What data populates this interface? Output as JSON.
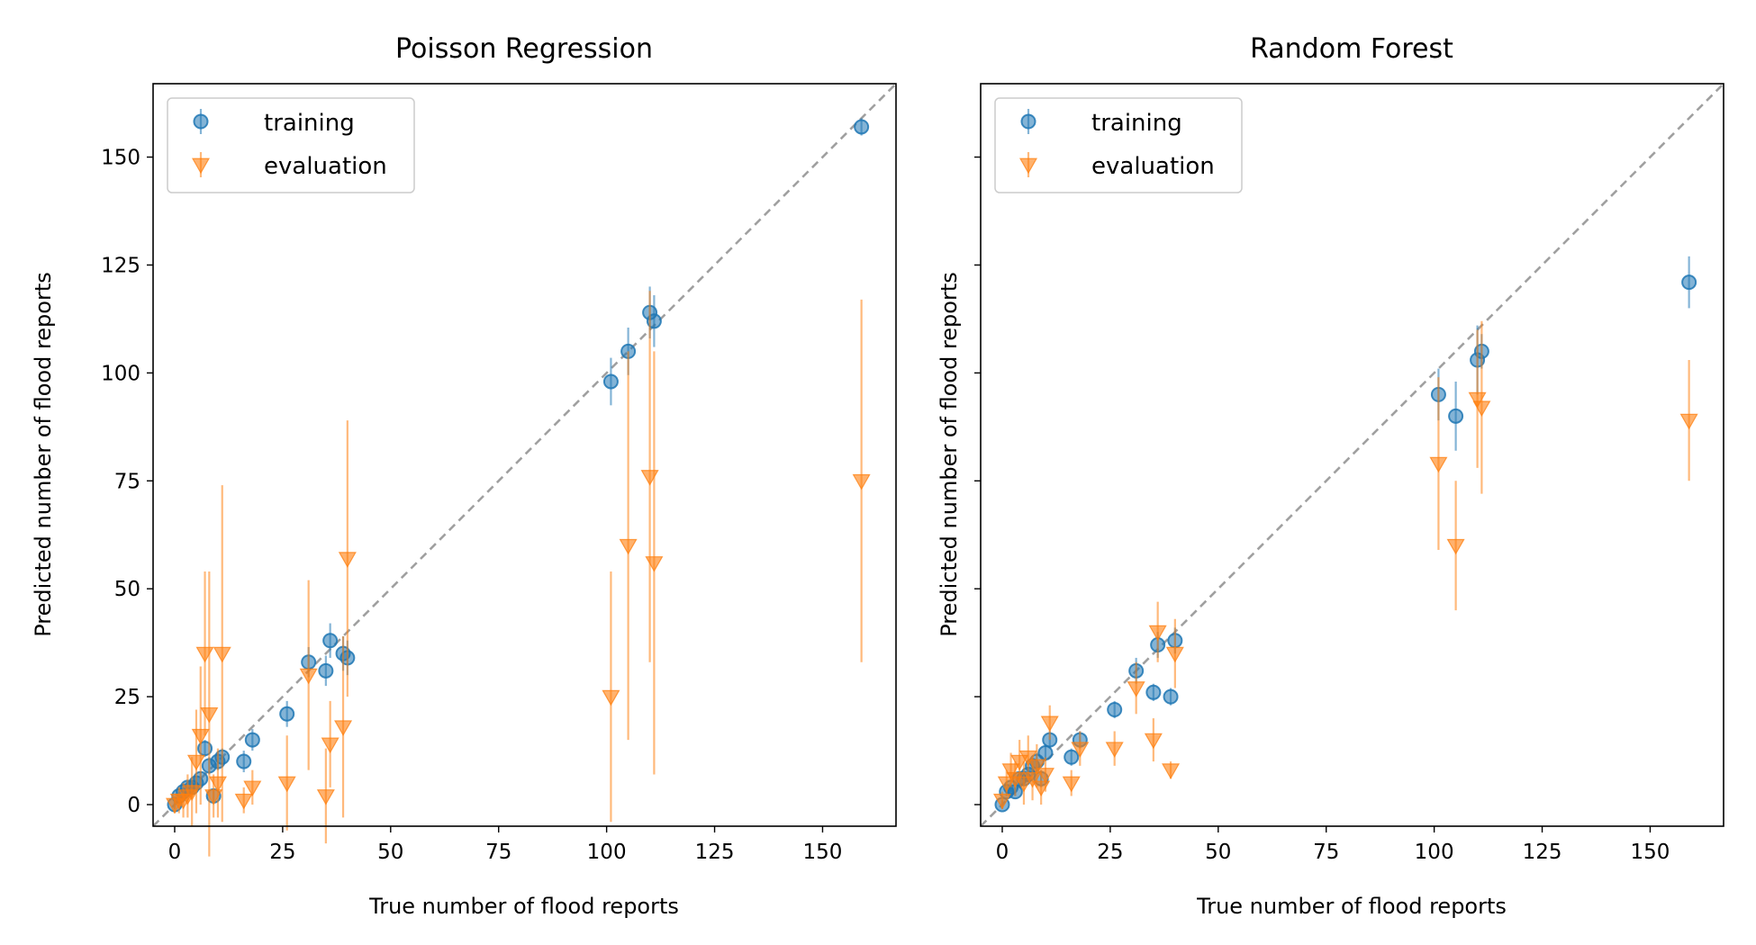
{
  "chart_data": [
    {
      "type": "scatter",
      "title": "Poisson Regression",
      "xlabel": "True number of flood reports",
      "ylabel": "Predicted number of flood reports",
      "xlim": [
        -5,
        167
      ],
      "ylim": [
        -5,
        167
      ],
      "xticks": [
        0,
        25,
        50,
        75,
        100,
        125,
        150
      ],
      "yticks": [
        0,
        25,
        50,
        75,
        100,
        125,
        150
      ],
      "show_yticklabels": true,
      "grid": false,
      "legend": "top-left",
      "reference_line": "y = x",
      "series": [
        {
          "name": "training",
          "marker": "circle",
          "color": "#1f77b4",
          "points": [
            {
              "x": 0,
              "y": 0,
              "err": 1
            },
            {
              "x": 1,
              "y": 2,
              "err": 1
            },
            {
              "x": 2,
              "y": 3,
              "err": 1
            },
            {
              "x": 3,
              "y": 4,
              "err": 1
            },
            {
              "x": 4,
              "y": 4,
              "err": 1.5
            },
            {
              "x": 5,
              "y": 5,
              "err": 1.5
            },
            {
              "x": 6,
              "y": 6,
              "err": 1.5
            },
            {
              "x": 7,
              "y": 13,
              "err": 2
            },
            {
              "x": 8,
              "y": 9,
              "err": 2
            },
            {
              "x": 9,
              "y": 2,
              "err": 1.5
            },
            {
              "x": 10,
              "y": 10,
              "err": 2
            },
            {
              "x": 11,
              "y": 11,
              "err": 2
            },
            {
              "x": 16,
              "y": 10,
              "err": 2.5
            },
            {
              "x": 18,
              "y": 15,
              "err": 2.5
            },
            {
              "x": 26,
              "y": 21,
              "err": 3
            },
            {
              "x": 31,
              "y": 33,
              "err": 3.5
            },
            {
              "x": 35,
              "y": 31,
              "err": 3.5
            },
            {
              "x": 36,
              "y": 38,
              "err": 4
            },
            {
              "x": 39,
              "y": 35,
              "err": 4
            },
            {
              "x": 40,
              "y": 34,
              "err": 4
            },
            {
              "x": 101,
              "y": 98,
              "err": 5.5
            },
            {
              "x": 105,
              "y": 105,
              "err": 5.5
            },
            {
              "x": 110,
              "y": 114,
              "err": 6
            },
            {
              "x": 111,
              "y": 112,
              "err": 6
            },
            {
              "x": 159,
              "y": 157,
              "err": 2
            }
          ]
        },
        {
          "name": "evaluation",
          "marker": "triangle-down",
          "color": "#ff7f0e",
          "points": [
            {
              "x": 0,
              "y": 0,
              "err": 2
            },
            {
              "x": 1,
              "y": 1,
              "err": 3
            },
            {
              "x": 2,
              "y": 1,
              "err": 4
            },
            {
              "x": 3,
              "y": 2,
              "err": 5
            },
            {
              "x": 4,
              "y": 3,
              "err": 8
            },
            {
              "x": 5,
              "y": 10,
              "err": 12
            },
            {
              "x": 6,
              "y": 16,
              "err": 16
            },
            {
              "x": 7,
              "y": 35,
              "err": 19
            },
            {
              "x": 8,
              "y": 21,
              "err": 33
            },
            {
              "x": 9,
              "y": 2,
              "err": 5
            },
            {
              "x": 10,
              "y": 5,
              "err": 8
            },
            {
              "x": 11,
              "y": 35,
              "err": 39
            },
            {
              "x": 16,
              "y": 1,
              "err": 3
            },
            {
              "x": 18,
              "y": 4,
              "err": 4
            },
            {
              "x": 26,
              "y": 5,
              "err": 11
            },
            {
              "x": 31,
              "y": 30,
              "err": 22
            },
            {
              "x": 35,
              "y": 2,
              "err": 11
            },
            {
              "x": 36,
              "y": 14,
              "err": 10
            },
            {
              "x": 39,
              "y": 18,
              "err": 21
            },
            {
              "x": 40,
              "y": 57,
              "err": 32
            },
            {
              "x": 101,
              "y": 25,
              "err": 29
            },
            {
              "x": 105,
              "y": 60,
              "err": 45
            },
            {
              "x": 110,
              "y": 76,
              "err": 43
            },
            {
              "x": 111,
              "y": 56,
              "err": 49
            },
            {
              "x": 159,
              "y": 75,
              "err": 42
            }
          ]
        }
      ]
    },
    {
      "type": "scatter",
      "title": "Random Forest",
      "xlabel": "True number of flood reports",
      "ylabel": "Predicted number of flood reports",
      "xlim": [
        -5,
        167
      ],
      "ylim": [
        -5,
        167
      ],
      "xticks": [
        0,
        25,
        50,
        75,
        100,
        125,
        150
      ],
      "yticks": [
        0,
        25,
        50,
        75,
        100,
        125,
        150
      ],
      "show_yticklabels": false,
      "grid": false,
      "legend": "top-left",
      "reference_line": "y = x",
      "series": [
        {
          "name": "training",
          "marker": "circle",
          "color": "#1f77b4",
          "points": [
            {
              "x": 0,
              "y": 0,
              "err": 1
            },
            {
              "x": 1,
              "y": 3,
              "err": 1
            },
            {
              "x": 2,
              "y": 4,
              "err": 1
            },
            {
              "x": 3,
              "y": 3,
              "err": 1
            },
            {
              "x": 4,
              "y": 6,
              "err": 1.5
            },
            {
              "x": 5,
              "y": 6,
              "err": 1.5
            },
            {
              "x": 6,
              "y": 7,
              "err": 1.5
            },
            {
              "x": 7,
              "y": 9,
              "err": 1.5
            },
            {
              "x": 8,
              "y": 10,
              "err": 2
            },
            {
              "x": 9,
              "y": 6,
              "err": 2
            },
            {
              "x": 10,
              "y": 12,
              "err": 2
            },
            {
              "x": 11,
              "y": 15,
              "err": 2
            },
            {
              "x": 16,
              "y": 11,
              "err": 2
            },
            {
              "x": 18,
              "y": 15,
              "err": 2
            },
            {
              "x": 26,
              "y": 22,
              "err": 2
            },
            {
              "x": 31,
              "y": 31,
              "err": 3
            },
            {
              "x": 35,
              "y": 26,
              "err": 2
            },
            {
              "x": 36,
              "y": 37,
              "err": 3
            },
            {
              "x": 39,
              "y": 25,
              "err": 2
            },
            {
              "x": 40,
              "y": 38,
              "err": 3
            },
            {
              "x": 101,
              "y": 95,
              "err": 6
            },
            {
              "x": 105,
              "y": 90,
              "err": 8
            },
            {
              "x": 110,
              "y": 103,
              "err": 8
            },
            {
              "x": 111,
              "y": 105,
              "err": 4
            },
            {
              "x": 159,
              "y": 121,
              "err": 6
            }
          ]
        },
        {
          "name": "evaluation",
          "marker": "triangle-down",
          "color": "#ff7f0e",
          "points": [
            {
              "x": 0,
              "y": 1,
              "err": 2
            },
            {
              "x": 1,
              "y": 5,
              "err": 3
            },
            {
              "x": 2,
              "y": 8,
              "err": 4
            },
            {
              "x": 3,
              "y": 6,
              "err": 4
            },
            {
              "x": 4,
              "y": 10,
              "err": 5
            },
            {
              "x": 5,
              "y": 5,
              "err": 5
            },
            {
              "x": 6,
              "y": 11,
              "err": 5
            },
            {
              "x": 7,
              "y": 6,
              "err": 5
            },
            {
              "x": 8,
              "y": 9,
              "err": 5
            },
            {
              "x": 9,
              "y": 4,
              "err": 4
            },
            {
              "x": 10,
              "y": 7,
              "err": 4
            },
            {
              "x": 11,
              "y": 19,
              "err": 4
            },
            {
              "x": 16,
              "y": 5,
              "err": 3
            },
            {
              "x": 18,
              "y": 13,
              "err": 4
            },
            {
              "x": 26,
              "y": 13,
              "err": 4
            },
            {
              "x": 31,
              "y": 27,
              "err": 6
            },
            {
              "x": 35,
              "y": 15,
              "err": 5
            },
            {
              "x": 36,
              "y": 40,
              "err": 7
            },
            {
              "x": 39,
              "y": 8,
              "err": 2
            },
            {
              "x": 40,
              "y": 35,
              "err": 8
            },
            {
              "x": 101,
              "y": 79,
              "err": 20
            },
            {
              "x": 105,
              "y": 60,
              "err": 15
            },
            {
              "x": 110,
              "y": 94,
              "err": 16
            },
            {
              "x": 111,
              "y": 92,
              "err": 20
            },
            {
              "x": 159,
              "y": 89,
              "err": 14
            }
          ]
        }
      ]
    }
  ]
}
